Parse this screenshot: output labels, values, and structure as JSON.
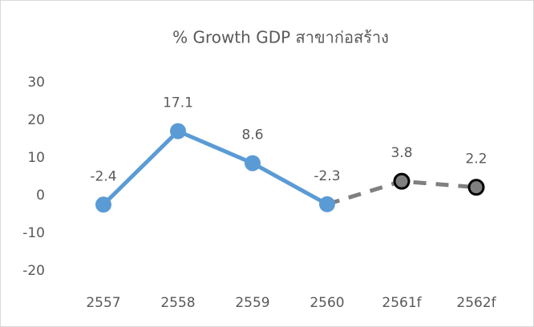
{
  "chart_data": {
    "type": "line",
    "title": "% Growth GDP สาขาก่อสร้าง",
    "categories": [
      "2557",
      "2558",
      "2559",
      "2560",
      "2561f",
      "2562f"
    ],
    "series": [
      {
        "color": "#5b9bd5",
        "values": [
          -2.4,
          17.1,
          8.6,
          -2.3,
          null,
          null
        ]
      },
      {
        "color": "#7f7f7f",
        "dashed": true,
        "values": [
          null,
          null,
          null,
          -2.3,
          3.8,
          2.2
        ]
      }
    ],
    "ylim": [
      -20,
      30
    ],
    "yticks": [
      -20,
      -10,
      0,
      10,
      20,
      30
    ],
    "grid": false
  }
}
